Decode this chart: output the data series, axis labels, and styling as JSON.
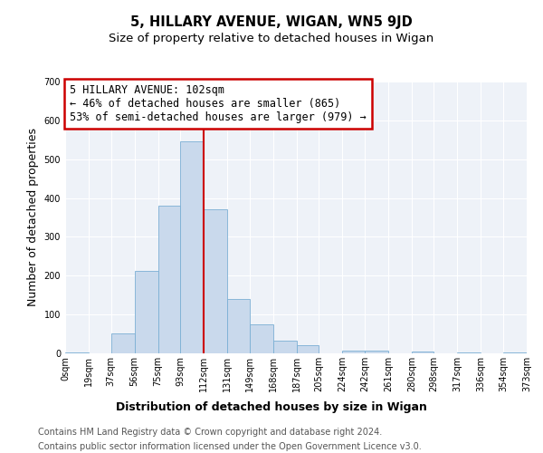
{
  "title": "5, HILLARY AVENUE, WIGAN, WN5 9JD",
  "subtitle": "Size of property relative to detached houses in Wigan",
  "xlabel": "Distribution of detached houses by size in Wigan",
  "ylabel": "Number of detached properties",
  "bin_edges": [
    0,
    19,
    37,
    56,
    75,
    93,
    112,
    131,
    149,
    168,
    187,
    205,
    224,
    242,
    261,
    280,
    298,
    317,
    336,
    354,
    373
  ],
  "bar_heights": [
    2,
    0,
    52,
    213,
    380,
    547,
    370,
    140,
    75,
    32,
    20,
    0,
    8,
    8,
    0,
    5,
    0,
    3,
    0,
    2
  ],
  "bar_color": "#c9d9ec",
  "bar_edgecolor": "#7bafd4",
  "red_line_x": 112,
  "annotation_title": "5 HILLARY AVENUE: 102sqm",
  "annotation_line1": "← 46% of detached houses are smaller (865)",
  "annotation_line2": "53% of semi-detached houses are larger (979) →",
  "annotation_box_edgecolor": "#cc0000",
  "red_line_color": "#cc0000",
  "ylim": [
    0,
    700
  ],
  "yticks": [
    0,
    100,
    200,
    300,
    400,
    500,
    600,
    700
  ],
  "tick_labels": [
    "0sqm",
    "19sqm",
    "37sqm",
    "56sqm",
    "75sqm",
    "93sqm",
    "112sqm",
    "131sqm",
    "149sqm",
    "168sqm",
    "187sqm",
    "205sqm",
    "224sqm",
    "242sqm",
    "261sqm",
    "280sqm",
    "298sqm",
    "317sqm",
    "336sqm",
    "354sqm",
    "373sqm"
  ],
  "footnote1": "Contains HM Land Registry data © Crown copyright and database right 2024.",
  "footnote2": "Contains public sector information licensed under the Open Government Licence v3.0.",
  "bg_color": "#eef2f8",
  "grid_color": "#ffffff",
  "title_fontsize": 10.5,
  "subtitle_fontsize": 9.5,
  "axis_label_fontsize": 9,
  "tick_fontsize": 7,
  "annotation_fontsize": 8.5,
  "footnote_fontsize": 7
}
